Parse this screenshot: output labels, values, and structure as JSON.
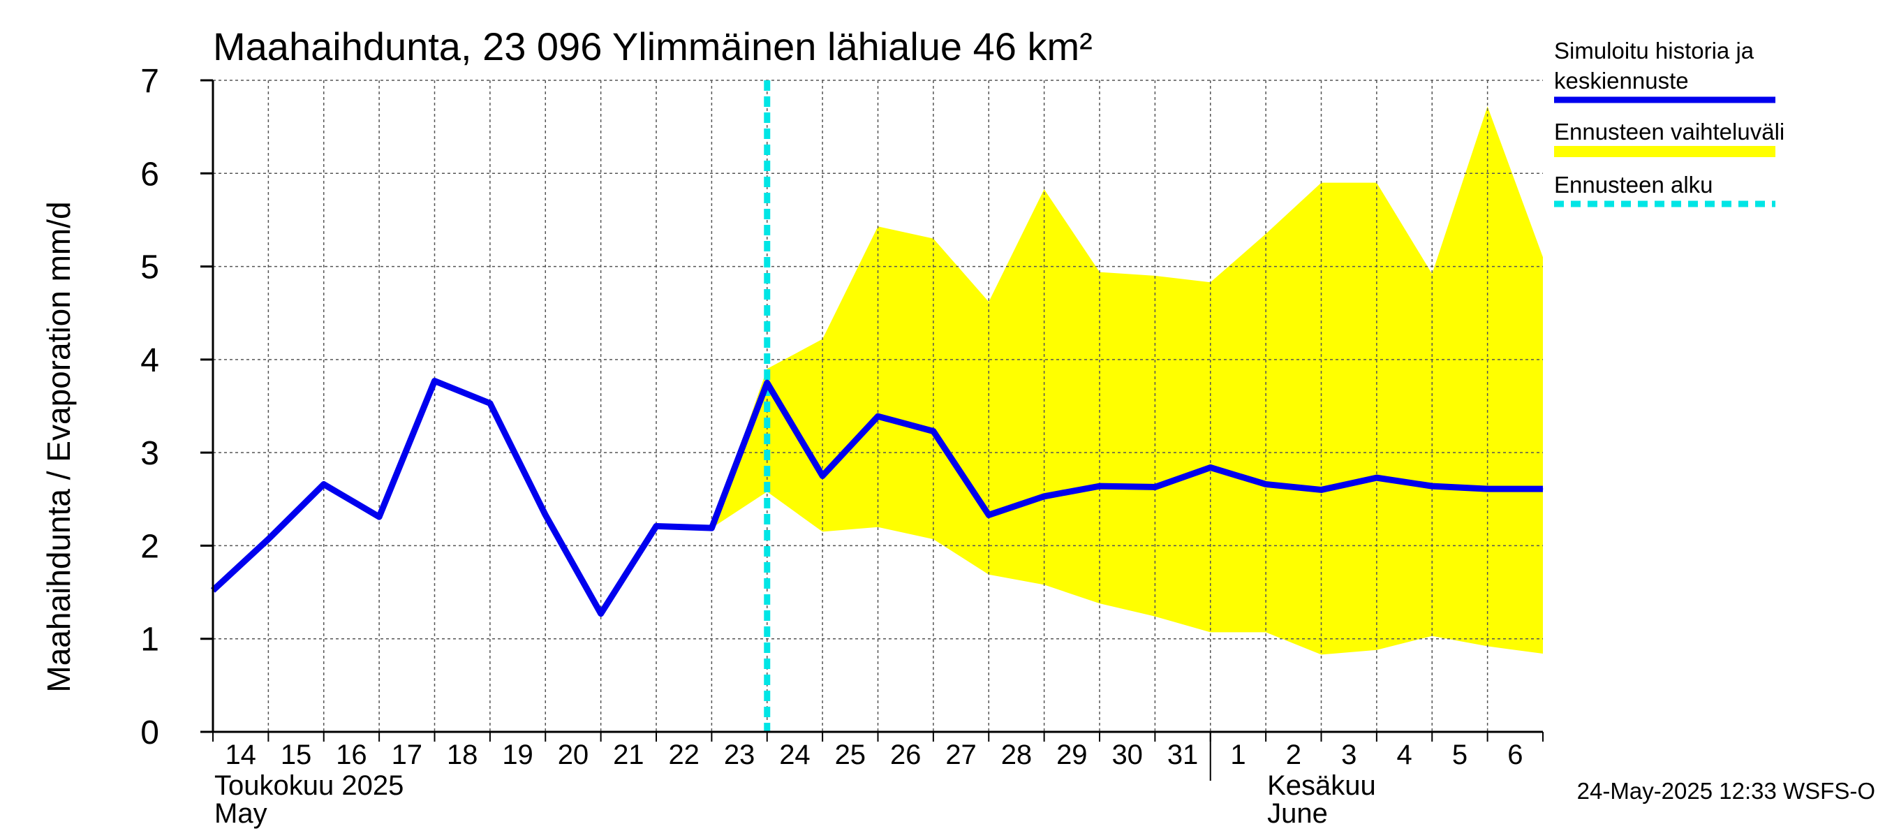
{
  "chart_data": {
    "type": "area",
    "title": "Maahaihdunta, 23 096 Ylimmäinen lähialue 46 km²",
    "ylabel": "Maahaihdunta / Evaporation   mm/d",
    "ylim": [
      0,
      7
    ],
    "yticks": [
      0,
      1,
      2,
      3,
      4,
      5,
      6,
      7
    ],
    "xlim": [
      0,
      24
    ],
    "x_tick_labels": [
      "14",
      "15",
      "16",
      "17",
      "18",
      "19",
      "20",
      "21",
      "22",
      "23",
      "24",
      "25",
      "26",
      "27",
      "28",
      "29",
      "30",
      "31",
      "1",
      "2",
      "3",
      "4",
      "5",
      "6"
    ],
    "month_labels": [
      {
        "line1": "Toukokuu  2025",
        "line2": "May",
        "x_index": 0
      },
      {
        "line1": "Kesäkuu",
        "line2": "June",
        "x_index": 19
      }
    ],
    "month_boundary_index": 18,
    "forecast_start_index": 10,
    "grid": true,
    "series": [
      {
        "name": "Simuloitu historia ja keskiennuste",
        "color": "#0000ee",
        "x": [
          0,
          1,
          2,
          3,
          4,
          5,
          6,
          7,
          8,
          9,
          10,
          11,
          12,
          13,
          14,
          15,
          16,
          17,
          18,
          19,
          20,
          21,
          22,
          23,
          24
        ],
        "values": [
          1.52,
          2.07,
          2.66,
          2.31,
          3.77,
          3.53,
          2.33,
          1.27,
          2.21,
          2.19,
          3.75,
          2.75,
          3.39,
          3.23,
          2.33,
          2.53,
          2.64,
          2.63,
          2.84,
          2.66,
          2.6,
          2.73,
          2.64,
          2.61,
          2.61
        ]
      },
      {
        "name": "Ennusteen vaihteluväli",
        "color": "#ffff00",
        "x": [
          9,
          10,
          11,
          12,
          13,
          14,
          15,
          16,
          17,
          18,
          19,
          20,
          21,
          22,
          23,
          24
        ],
        "upper": [
          2.19,
          3.9,
          4.22,
          5.43,
          5.3,
          4.62,
          5.83,
          4.94,
          4.9,
          4.83,
          5.35,
          5.9,
          5.9,
          4.92,
          6.72,
          5.1
        ],
        "lower": [
          2.19,
          2.58,
          2.15,
          2.2,
          2.07,
          1.69,
          1.58,
          1.38,
          1.24,
          1.07,
          1.07,
          0.83,
          0.88,
          1.03,
          0.92,
          0.84
        ]
      },
      {
        "name": "Ennusteen alku",
        "color": "#00e5e5",
        "x": [
          10
        ]
      }
    ],
    "legend": {
      "placement": "right",
      "entries": [
        {
          "label_line1": "Simuloitu historia ja",
          "label_line2": "keskiennuste",
          "color": "#0000ee",
          "style": "solid"
        },
        {
          "label_line1": "Ennusteen vaihteluväli",
          "color": "#ffff00",
          "style": "solid"
        },
        {
          "label_line1": "Ennusteen alku",
          "color": "#00e5e5",
          "style": "dashed"
        }
      ]
    },
    "timestamp": "24-May-2025 12:33 WSFS-O"
  }
}
